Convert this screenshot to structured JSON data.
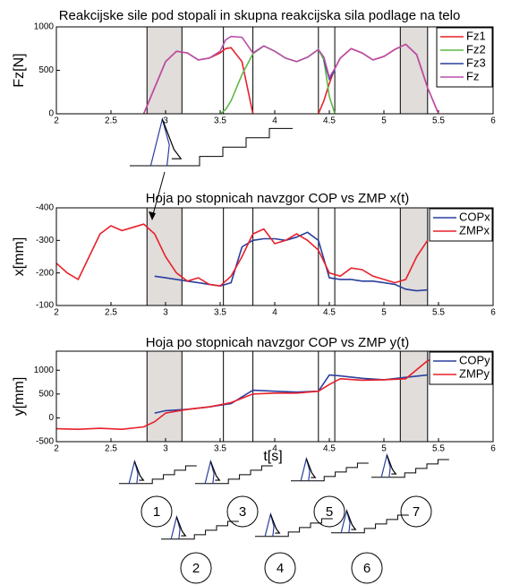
{
  "chart_data": [
    {
      "type": "line",
      "title": "Reakcijske sile pod stopali in skupna reakcijska sila podlage na telo",
      "y_label": "Fz[N]",
      "x": [
        2.8,
        2.9,
        3.0,
        3.1,
        3.2,
        3.3,
        3.4,
        3.5,
        3.55,
        3.6,
        3.7,
        3.8,
        3.9,
        4.0,
        4.1,
        4.2,
        4.3,
        4.4,
        4.45,
        4.5,
        4.55,
        4.6,
        4.7,
        4.8,
        4.9,
        5.0,
        5.1,
        5.2,
        5.3,
        5.4,
        5.5
      ],
      "series": [
        {
          "name": "Fz1",
          "color": "#e8202a",
          "values": [
            0,
            300,
            600,
            720,
            700,
            620,
            640,
            700,
            750,
            760,
            600,
            0,
            null,
            null,
            null,
            null,
            null,
            0,
            150,
            350,
            520,
            640,
            750,
            700,
            620,
            660,
            740,
            800,
            680,
            300,
            0
          ]
        },
        {
          "name": "Fz2",
          "color": "#5fb846",
          "values": [
            null,
            null,
            null,
            null,
            null,
            null,
            null,
            0,
            50,
            150,
            450,
            690,
            780,
            720,
            640,
            600,
            650,
            740,
            620,
            200,
            0,
            null,
            null,
            null,
            null,
            null,
            null,
            null,
            null,
            null,
            null
          ]
        },
        {
          "name": "Fz3",
          "color": "#2a3f9e",
          "values": [
            null,
            null,
            null,
            null,
            null,
            null,
            null,
            null,
            null,
            null,
            null,
            null,
            null,
            null,
            null,
            null,
            null,
            null,
            620,
            400,
            500,
            null,
            null,
            null,
            null,
            null,
            null,
            null,
            null,
            null,
            null
          ]
        },
        {
          "name": "Fz",
          "color": "#b84fa8",
          "values": [
            0,
            300,
            600,
            720,
            700,
            620,
            640,
            720,
            850,
            890,
            880,
            700,
            780,
            720,
            640,
            600,
            650,
            740,
            650,
            420,
            520,
            640,
            750,
            700,
            620,
            660,
            740,
            800,
            680,
            300,
            0
          ]
        }
      ],
      "xlim": [
        2,
        6
      ],
      "xticks": [
        2,
        2.5,
        3,
        3.5,
        4,
        4.5,
        5,
        5.5,
        6
      ],
      "ylim": [
        0,
        1000
      ],
      "yticks": [
        0,
        500,
        1000
      ],
      "shaded": [
        [
          2.83,
          3.15
        ],
        [
          5.15,
          5.4
        ]
      ],
      "vlines": [
        2.83,
        3.15,
        3.53,
        3.8,
        4.4,
        4.55,
        5.15,
        5.4
      ],
      "legend": "upper right"
    },
    {
      "type": "line",
      "title": "Hoja po stopnicah navzgor COP vs ZMP x(t)",
      "y_label": "x[mm]",
      "x": [
        2.0,
        2.1,
        2.2,
        2.3,
        2.4,
        2.5,
        2.6,
        2.7,
        2.8,
        2.9,
        3.0,
        3.1,
        3.2,
        3.3,
        3.4,
        3.5,
        3.6,
        3.7,
        3.8,
        3.9,
        4.0,
        4.1,
        4.2,
        4.3,
        4.4,
        4.5,
        4.6,
        4.7,
        4.8,
        4.9,
        5.0,
        5.1,
        5.2,
        5.3,
        5.4
      ],
      "series": [
        {
          "name": "COPx",
          "color": "#2a3f9e",
          "values": [
            null,
            null,
            null,
            null,
            null,
            null,
            null,
            null,
            null,
            -190,
            -185,
            -180,
            -175,
            -170,
            -165,
            -160,
            -170,
            -280,
            -300,
            -305,
            -305,
            -300,
            -310,
            -325,
            -300,
            -185,
            -180,
            -180,
            -175,
            -175,
            -170,
            -165,
            -150,
            -145,
            -148
          ]
        },
        {
          "name": "ZMPx",
          "color": "#e8202a",
          "values": [
            -230,
            -200,
            -180,
            -250,
            -320,
            -345,
            -330,
            -340,
            -350,
            -320,
            -250,
            -200,
            -175,
            -185,
            -165,
            -160,
            -190,
            -250,
            -320,
            -335,
            -290,
            -300,
            -320,
            -300,
            -270,
            -200,
            -190,
            -215,
            -210,
            -190,
            -180,
            -170,
            -180,
            -250,
            -300
          ]
        }
      ],
      "xlim": [
        2,
        6
      ],
      "xticks": [
        2,
        2.5,
        3,
        3.5,
        4,
        4.5,
        5,
        5.5,
        6
      ],
      "ylim": [
        -100,
        -400
      ],
      "yticks": [
        -400,
        -300,
        -200,
        -100
      ],
      "shaded": [
        [
          2.83,
          3.15
        ],
        [
          5.15,
          5.4
        ]
      ],
      "vlines": [
        2.83,
        3.15,
        3.53,
        3.8,
        4.4,
        4.55,
        5.15,
        5.4
      ],
      "legend": "upper right"
    },
    {
      "type": "line",
      "title": "Hoja po stopnicah navzgor COP vs ZMP y(t)",
      "y_label": "y[mm]",
      "x_label": "t[s]",
      "x": [
        2.0,
        2.2,
        2.4,
        2.6,
        2.8,
        2.9,
        3.0,
        3.2,
        3.4,
        3.6,
        3.8,
        4.0,
        4.2,
        4.4,
        4.5,
        4.6,
        4.8,
        5.0,
        5.2,
        5.4,
        5.5
      ],
      "series": [
        {
          "name": "COPy",
          "color": "#2a3f9e",
          "values": [
            null,
            null,
            null,
            null,
            null,
            100,
            150,
            180,
            230,
            300,
            580,
            560,
            540,
            560,
            900,
            880,
            830,
            800,
            850,
            900,
            null
          ]
        },
        {
          "name": "ZMPy",
          "color": "#e8202a",
          "values": [
            -230,
            -240,
            -220,
            -240,
            -190,
            -80,
            100,
            180,
            230,
            320,
            500,
            520,
            520,
            560,
            700,
            820,
            790,
            800,
            820,
            1200,
            1280
          ]
        }
      ],
      "xlim": [
        2,
        6
      ],
      "xticks": [
        2,
        2.5,
        3,
        3.5,
        4,
        4.5,
        5,
        5.5,
        6
      ],
      "ylim": [
        -500,
        1400
      ],
      "yticks": [
        -500,
        0,
        500,
        1000
      ],
      "shaded": [
        [
          2.83,
          3.15
        ],
        [
          5.15,
          5.4
        ]
      ],
      "vlines": [
        2.83,
        3.15,
        3.53,
        3.8,
        4.4,
        4.55,
        5.15,
        5.4
      ],
      "legend": "upper right"
    }
  ],
  "figure_labels": [
    "1",
    "2",
    "3",
    "4",
    "5",
    "6",
    "7"
  ]
}
